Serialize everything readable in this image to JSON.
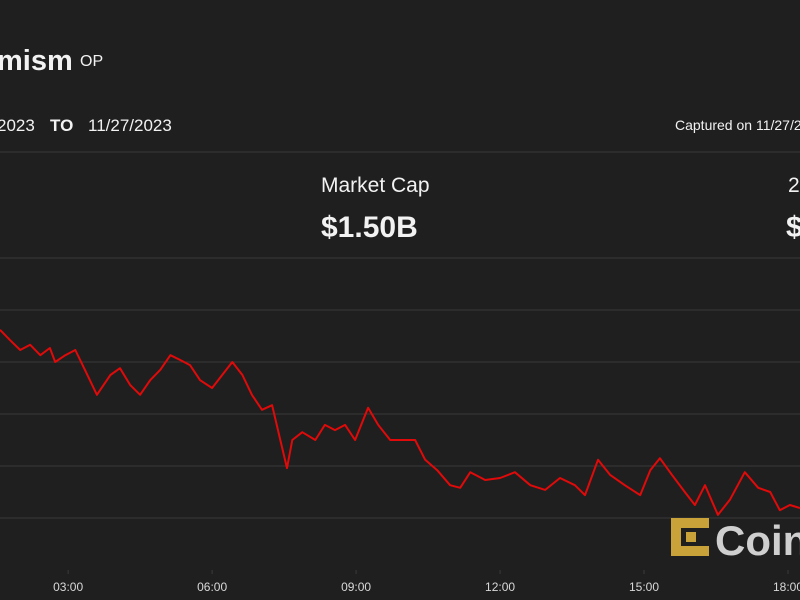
{
  "header": {
    "name": "mism",
    "symbol": "OP",
    "from": "2023",
    "to_label": "TO",
    "to": "11/27/2023",
    "captured": "Captured on 11/27/2"
  },
  "stats": [
    {
      "label": "Market Cap",
      "value": "$1.50B"
    },
    {
      "label": "2",
      "value": "$"
    }
  ],
  "logo": "Coin",
  "chart_data": {
    "type": "line",
    "color": "#e00a0a",
    "grid": true,
    "xlim": [
      1.58,
      18.25
    ],
    "xticks": [
      {
        "value": 3,
        "label": "03:00"
      },
      {
        "value": 6,
        "label": "06:00"
      },
      {
        "value": 9,
        "label": "09:00"
      },
      {
        "value": 12,
        "label": "12:00"
      },
      {
        "value": 15,
        "label": "15:00"
      },
      {
        "value": 18,
        "label": "18:00"
      }
    ],
    "ylim": [
      0,
      6
    ],
    "yticks": [
      1,
      2,
      3,
      4,
      5
    ],
    "x": [
      1.58,
      1.79,
      2.0,
      2.21,
      2.42,
      2.62,
      2.73,
      2.94,
      3.15,
      3.35,
      3.6,
      3.88,
      4.08,
      4.29,
      4.5,
      4.71,
      4.92,
      5.13,
      5.33,
      5.54,
      5.75,
      6.0,
      6.21,
      6.42,
      6.63,
      6.83,
      7.04,
      7.25,
      7.42,
      7.56,
      7.67,
      7.88,
      8.15,
      8.35,
      8.56,
      8.77,
      8.98,
      9.25,
      9.46,
      9.71,
      9.96,
      10.23,
      10.44,
      10.69,
      10.96,
      11.17,
      11.38,
      11.69,
      12.0,
      12.31,
      12.63,
      12.94,
      13.25,
      13.56,
      13.77,
      14.04,
      14.29,
      14.6,
      14.92,
      15.13,
      15.33,
      15.58,
      15.85,
      16.06,
      16.27,
      16.54,
      16.79,
      17.1,
      17.38,
      17.63,
      17.83,
      18.04,
      18.25
    ],
    "values": [
      4.62,
      4.42,
      4.23,
      4.33,
      4.13,
      4.27,
      4.0,
      4.13,
      4.23,
      3.85,
      3.37,
      3.75,
      3.88,
      3.56,
      3.37,
      3.65,
      3.85,
      4.13,
      4.04,
      3.94,
      3.65,
      3.5,
      3.75,
      4.0,
      3.75,
      3.37,
      3.08,
      3.17,
      2.5,
      1.96,
      2.5,
      2.65,
      2.5,
      2.79,
      2.69,
      2.79,
      2.5,
      3.12,
      2.79,
      2.5,
      2.5,
      2.5,
      2.12,
      1.92,
      1.63,
      1.58,
      1.88,
      1.73,
      1.77,
      1.88,
      1.63,
      1.54,
      1.77,
      1.63,
      1.44,
      2.12,
      1.83,
      1.63,
      1.44,
      1.92,
      2.15,
      1.83,
      1.5,
      1.25,
      1.63,
      1.06,
      1.35,
      1.88,
      1.58,
      1.5,
      1.15,
      1.25,
      1.19
    ]
  }
}
